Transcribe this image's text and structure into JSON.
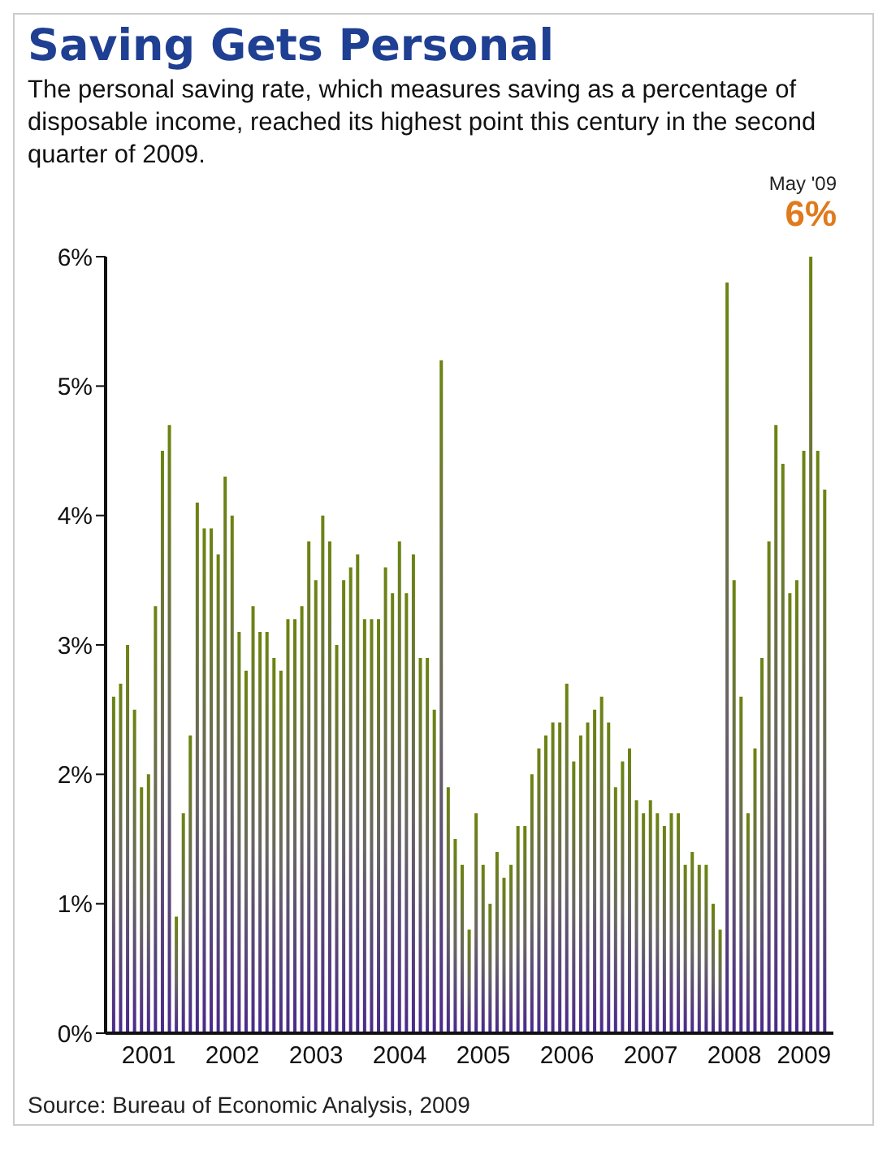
{
  "chart_data": {
    "type": "bar",
    "title": "Saving Gets Personal",
    "subtitle": "The personal saving rate, which measures saving as a percentage of disposable income, reached its highest point this century in the second quarter of 2009.",
    "categories": [
      null,
      null,
      null,
      null,
      null,
      "2001",
      null,
      null,
      null,
      null,
      null,
      null,
      null,
      null,
      null,
      null,
      null,
      "2002",
      null,
      null,
      null,
      null,
      null,
      null,
      null,
      null,
      null,
      null,
      null,
      "2003",
      null,
      null,
      null,
      null,
      null,
      null,
      null,
      null,
      null,
      null,
      null,
      "2004",
      null,
      null,
      null,
      null,
      null,
      null,
      null,
      null,
      null,
      null,
      null,
      "2005",
      null,
      null,
      null,
      null,
      null,
      null,
      null,
      null,
      null,
      null,
      null,
      "2006",
      null,
      null,
      null,
      null,
      null,
      null,
      null,
      null,
      null,
      null,
      null,
      "2007",
      null,
      null,
      null,
      null,
      null,
      null,
      null,
      null,
      null,
      null,
      null,
      "2008",
      null,
      null,
      null,
      null,
      null,
      null,
      null,
      null,
      null,
      "2009",
      null,
      null,
      null
    ],
    "values": [
      2.6,
      2.7,
      3.0,
      2.5,
      1.9,
      2.0,
      3.3,
      4.5,
      4.7,
      0.9,
      1.7,
      2.3,
      4.1,
      3.9,
      3.9,
      3.7,
      4.3,
      4.0,
      3.1,
      2.8,
      3.3,
      3.1,
      3.1,
      2.9,
      2.8,
      3.2,
      3.2,
      3.3,
      3.8,
      3.5,
      4.0,
      3.8,
      3.0,
      3.5,
      3.6,
      3.7,
      3.2,
      3.2,
      3.2,
      3.6,
      3.4,
      3.8,
      3.4,
      3.7,
      2.9,
      2.9,
      2.5,
      5.2,
      1.9,
      1.5,
      1.3,
      0.8,
      1.7,
      1.3,
      1.0,
      1.4,
      1.2,
      1.3,
      1.6,
      1.6,
      2.0,
      2.2,
      2.3,
      2.4,
      2.4,
      2.7,
      2.1,
      2.3,
      2.4,
      2.5,
      2.6,
      2.4,
      1.9,
      2.1,
      2.2,
      1.8,
      1.7,
      1.8,
      1.7,
      1.6,
      1.7,
      1.7,
      1.3,
      1.4,
      1.3,
      1.3,
      1.0,
      0.8,
      5.8,
      3.5,
      2.6,
      1.7,
      2.2,
      2.9,
      3.8,
      4.7,
      4.4,
      3.4,
      3.5,
      4.5,
      6.0,
      4.5,
      4.2
    ],
    "color": "#6b8411",
    "ylim": [
      0,
      6
    ],
    "yticks": [
      {
        "value": 0,
        "label": "0%"
      },
      {
        "value": 1,
        "label": "1%"
      },
      {
        "value": 2,
        "label": "2%"
      },
      {
        "value": 3,
        "label": "3%"
      },
      {
        "value": 4,
        "label": "4%"
      },
      {
        "value": 5,
        "label": "5%"
      },
      {
        "value": 6,
        "label": "6%"
      }
    ],
    "annotations": [
      "May '09",
      "6%",
      "Source: Bureau of Economic Analysis, 2009"
    ]
  }
}
